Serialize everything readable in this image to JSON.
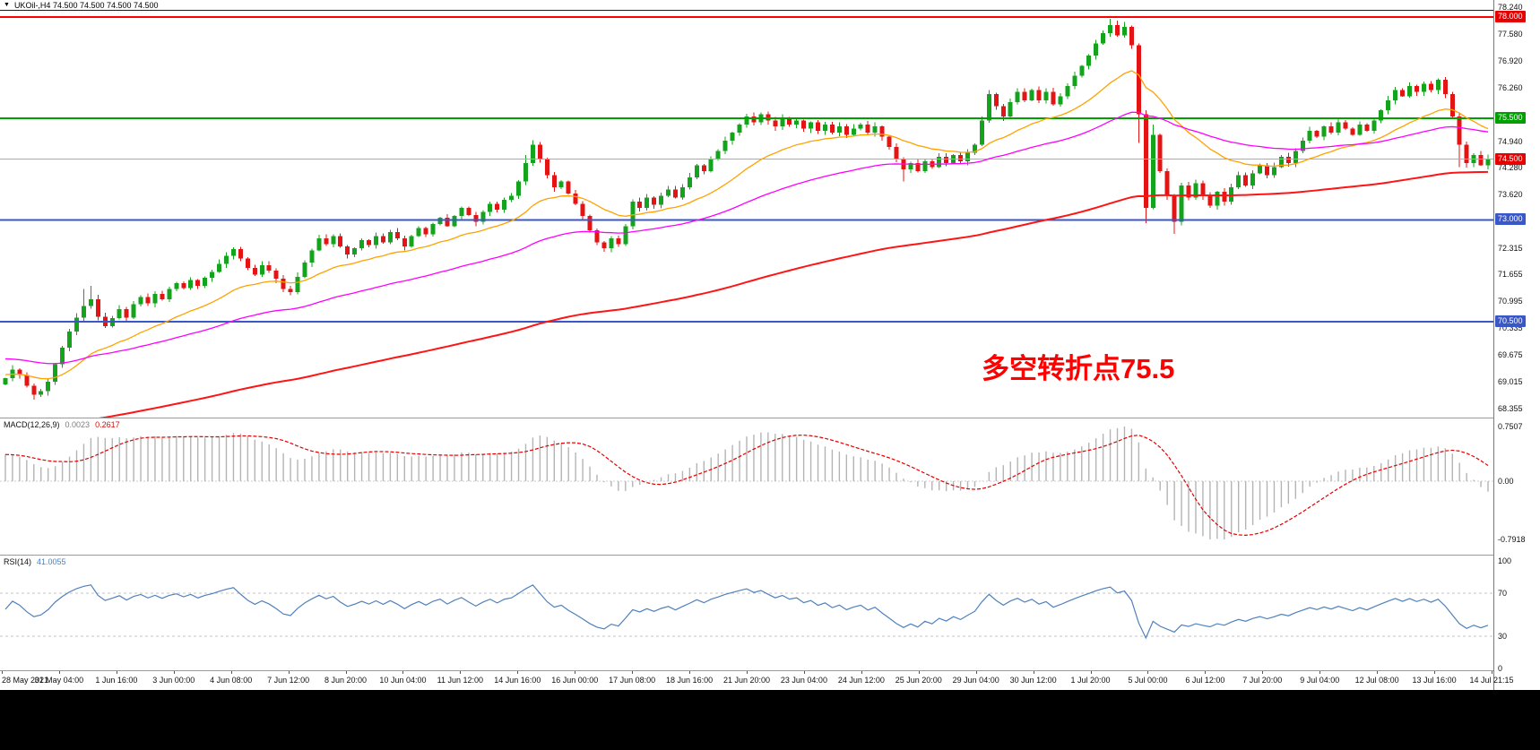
{
  "header": {
    "menu_icon": "▼",
    "symbol_line": "UKOil-,H4 74.500 74.500 74.500 74.500"
  },
  "time_axis": {
    "labels": [
      "28 May 2021",
      "31 May 04:00",
      "1 Jun 16:00",
      "3 Jun 00:00",
      "4 Jun 08:00",
      "7 Jun 12:00",
      "8 Jun 20:00",
      "10 Jun 04:00",
      "11 Jun 12:00",
      "14 Jun 16:00",
      "16 Jun 00:00",
      "17 Jun 08:00",
      "18 Jun 16:00",
      "21 Jun 20:00",
      "23 Jun 04:00",
      "24 Jun 12:00",
      "25 Jun 20:00",
      "29 Jun 04:00",
      "30 Jun 12:00",
      "1 Jul 20:00",
      "5 Jul 00:00",
      "6 Jul 12:00",
      "7 Jul 20:00",
      "9 Jul 04:00",
      "12 Jul 08:00",
      "13 Jul 16:00",
      "14 Jul 21:15"
    ]
  },
  "indicators": {
    "macd": {
      "label": "MACD(12,26,9)",
      "value_main": "0.0023",
      "value_signal": "0.2617",
      "params": {
        "fast": 12,
        "slow": 26,
        "signal": 9
      },
      "axis": [
        "0.7507",
        "0.00",
        "-0.7918"
      ],
      "bar_color": "#b4b4b4",
      "signal_color": "#e00000"
    },
    "rsi": {
      "label": "RSI(14)",
      "value": "41.0055",
      "period": 14,
      "axis": [
        "100",
        "70",
        "30",
        "0"
      ],
      "levels": [
        70,
        30
      ],
      "line_color": "#4f81bd"
    }
  },
  "chart_data": {
    "type": "candlestick",
    "symbol": "UKOil-",
    "timeframe": "H4",
    "current_price": 74.5,
    "up_color": "#14a31c",
    "down_color": "#e41414",
    "first_open": 68.95,
    "y_range": [
      68.355,
      78.24
    ],
    "y_ticks": [
      "78.240",
      "77.580",
      "76.920",
      "76.260",
      "74.940",
      "74.280",
      "73.620",
      "72.315",
      "71.655",
      "70.995",
      "70.335",
      "69.675",
      "69.015",
      "68.355"
    ],
    "y_badges": [
      {
        "label": "78.000",
        "color": "#e60000"
      },
      {
        "label": "75.500",
        "color": "#00a000"
      },
      {
        "label": "74.500",
        "color": "#e60000"
      },
      {
        "label": "73.000",
        "color": "#3a57c8"
      },
      {
        "label": "70.500",
        "color": "#3a57c8"
      }
    ],
    "levels": [
      {
        "value": 78.0,
        "color": "#ff0000",
        "width": 2
      },
      {
        "value": 75.5,
        "color": "#00a000",
        "width": 2
      },
      {
        "value": 74.5,
        "color": "#8fb0d8",
        "width": 1
      },
      {
        "value": 73.0,
        "color": "#3a57c8",
        "width": 2
      },
      {
        "value": 70.5,
        "color": "#3a57c8",
        "width": 2
      }
    ],
    "moving_averages": [
      {
        "name": "fast-ma",
        "period": 20,
        "seed": 69.2,
        "color": "#ffa200",
        "width": 1.3
      },
      {
        "name": "mid-ma",
        "period": 55,
        "seed": 69.6,
        "color": "#ff00ff",
        "width": 1.3
      },
      {
        "name": "slow-ma",
        "period": 160,
        "seed": 67.8,
        "color": "#ff1414",
        "width": 2
      }
    ],
    "closes": [
      69.1,
      69.32,
      69.18,
      68.92,
      68.7,
      68.78,
      69.02,
      69.45,
      69.85,
      70.25,
      70.6,
      70.88,
      71.05,
      70.62,
      70.38,
      70.58,
      70.8,
      70.6,
      70.92,
      71.1,
      70.95,
      71.18,
      71.05,
      71.3,
      71.44,
      71.32,
      71.52,
      71.38,
      71.58,
      71.72,
      71.92,
      72.12,
      72.28,
      72.05,
      71.82,
      71.65,
      71.88,
      71.75,
      71.55,
      71.3,
      71.22,
      71.6,
      71.95,
      72.25,
      72.55,
      72.4,
      72.6,
      72.35,
      72.15,
      72.3,
      72.5,
      72.38,
      72.6,
      72.45,
      72.7,
      72.55,
      72.35,
      72.6,
      72.8,
      72.65,
      72.9,
      73.05,
      72.85,
      73.1,
      73.3,
      73.12,
      72.95,
      73.2,
      73.4,
      73.25,
      73.5,
      73.6,
      73.95,
      74.4,
      74.85,
      74.5,
      74.1,
      73.8,
      73.95,
      73.65,
      73.4,
      73.1,
      72.75,
      72.45,
      72.3,
      72.55,
      72.4,
      72.85,
      73.45,
      73.3,
      73.55,
      73.38,
      73.6,
      73.75,
      73.55,
      73.8,
      74.05,
      74.35,
      74.2,
      74.5,
      74.7,
      74.95,
      75.15,
      75.35,
      75.55,
      75.4,
      75.6,
      75.45,
      75.3,
      75.5,
      75.35,
      75.45,
      75.25,
      75.4,
      75.2,
      75.35,
      75.15,
      75.3,
      75.1,
      75.25,
      75.35,
      75.15,
      75.3,
      75.05,
      74.8,
      74.5,
      74.25,
      74.4,
      74.2,
      74.45,
      74.3,
      74.55,
      74.4,
      74.6,
      74.45,
      74.65,
      74.85,
      75.45,
      76.1,
      75.8,
      75.55,
      75.9,
      76.15,
      75.95,
      76.2,
      75.95,
      76.15,
      75.85,
      76.05,
      76.3,
      76.55,
      76.8,
      77.05,
      77.35,
      77.6,
      77.8,
      77.55,
      77.75,
      77.3,
      75.6,
      73.3,
      75.1,
      74.2,
      73.6,
      72.95,
      73.85,
      73.55,
      73.9,
      73.6,
      73.35,
      73.7,
      73.45,
      73.8,
      74.1,
      73.85,
      74.15,
      74.35,
      74.1,
      74.3,
      74.55,
      74.4,
      74.7,
      74.95,
      75.2,
      75.05,
      75.3,
      75.15,
      75.4,
      75.25,
      75.1,
      75.35,
      75.2,
      75.45,
      75.7,
      75.95,
      76.2,
      76.05,
      76.3,
      76.15,
      76.35,
      76.2,
      76.45,
      76.1,
      75.55,
      74.85,
      74.4,
      74.6,
      74.35,
      74.5
    ],
    "wick_overrides": {
      "4": {
        "low": 68.58
      },
      "11": {
        "high": 71.3
      },
      "12": {
        "high": 71.38
      },
      "73": {
        "high": 74.6
      },
      "74": {
        "high": 74.96
      },
      "84": {
        "low": 72.22
      },
      "126": {
        "low": 73.95
      },
      "155": {
        "high": 77.95
      },
      "157": {
        "high": 77.88
      },
      "159": {
        "low": 74.9
      },
      "160": {
        "low": 72.92
      },
      "161": {
        "high": 75.35
      },
      "164": {
        "low": 72.66
      },
      "204": {
        "low": 74.3
      }
    },
    "annotation": {
      "text": "多空转折点75.5",
      "color": "#ff0000"
    }
  }
}
